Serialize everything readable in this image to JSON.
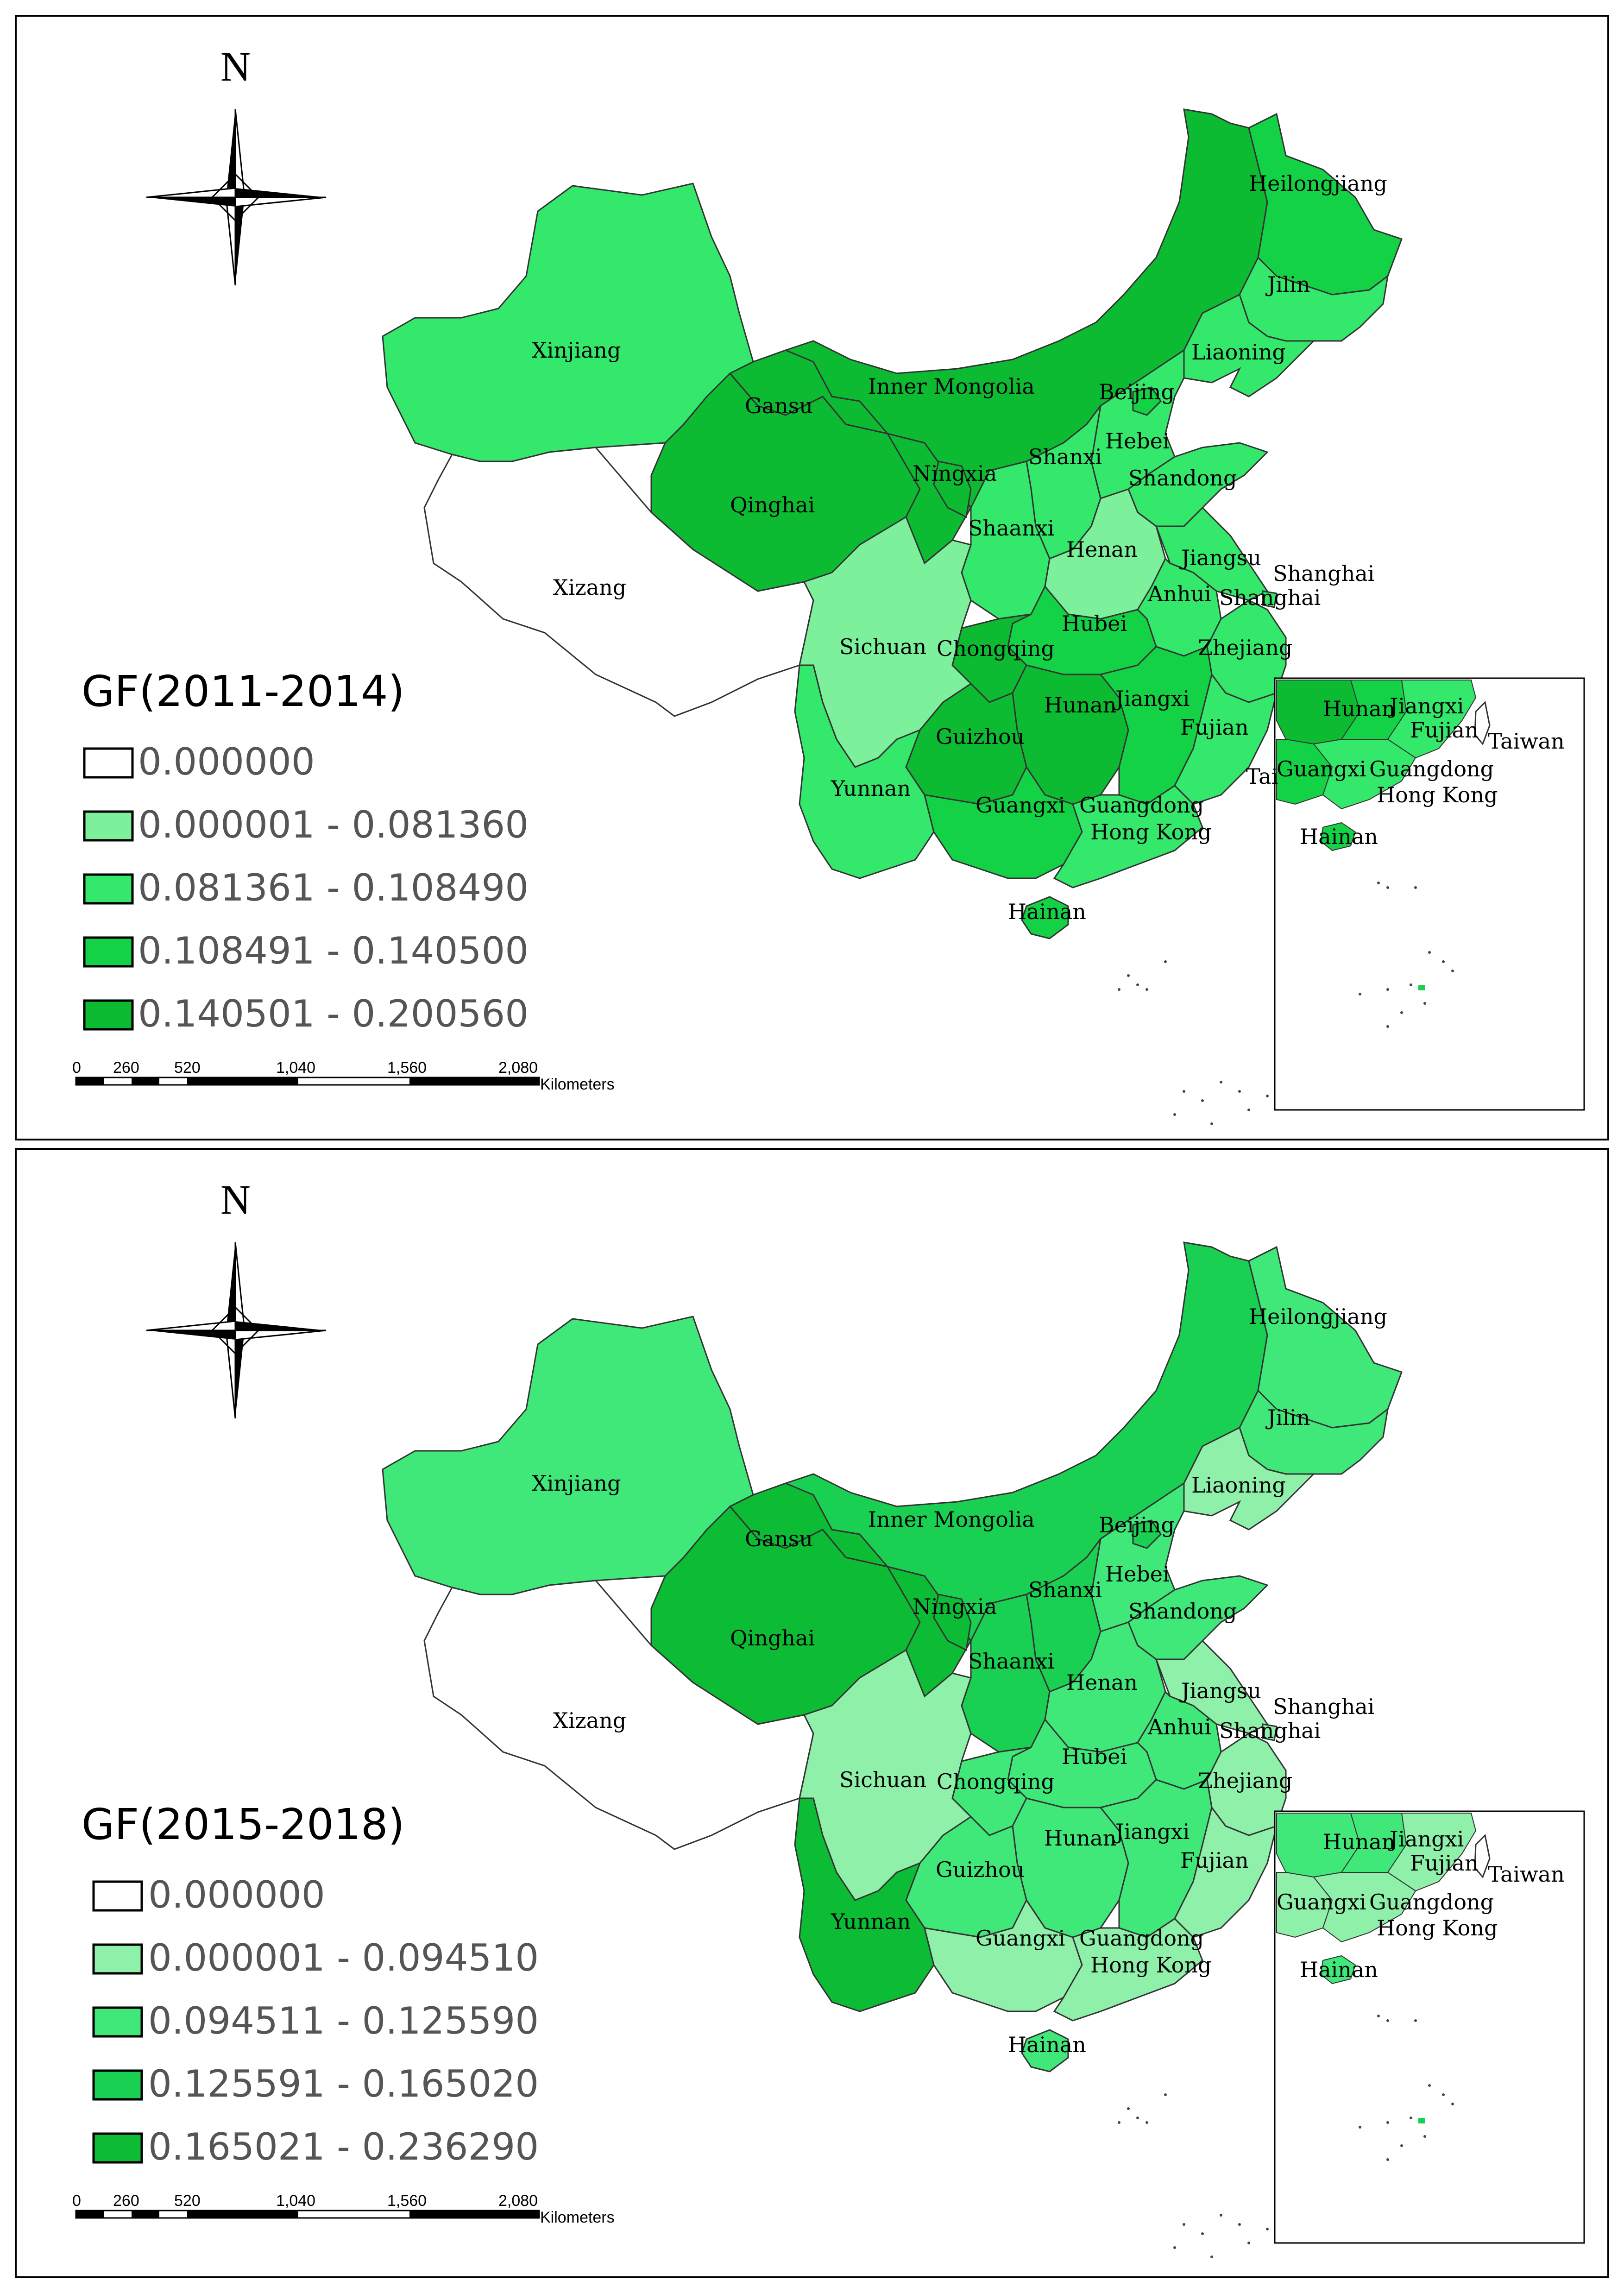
{
  "panels": [
    {
      "legend_title": "GF(2011-2014)",
      "classes": [
        {
          "label": "0.000000",
          "color": "#ffffff"
        },
        {
          "label": "0.000001 - 0.081360",
          "color": "#7cf09a"
        },
        {
          "label": "0.081361 - 0.108490",
          "color": "#33e86a"
        },
        {
          "label": "0.108491 - 0.140500",
          "color": "#14d246"
        },
        {
          "label": "0.140501 - 0.200560",
          "color": "#0dbb33"
        }
      ],
      "provinces": {
        "Xinjiang": 2,
        "Xizang": 0,
        "Qinghai": 4,
        "Gansu": 4,
        "Inner Mongolia": 4,
        "Heilongjiang": 3,
        "Jilin": 2,
        "Liaoning": 2,
        "Beijing": 3,
        "Hebei": 2,
        "Shanxi": 2,
        "Shandong": 2,
        "Ningxia": 4,
        "Shaanxi": 2,
        "Henan": 1,
        "Jiangsu": 2,
        "Anhui": 2,
        "Shanghai": 2,
        "Hubei": 3,
        "Chongqing": 4,
        "Sichuan": 1,
        "Zhejiang": 2,
        "Hunan": 4,
        "Jiangxi": 3,
        "Fujian": 2,
        "Guizhou": 4,
        "Yunnan": 2,
        "Guangxi": 3,
        "Guangdong": 2,
        "Hainan": 3
      }
    },
    {
      "legend_title": "GF(2015-2018)",
      "classes": [
        {
          "label": "0.000000",
          "color": "#ffffff"
        },
        {
          "label": "0.000001 - 0.094510",
          "color": "#8ff0aa"
        },
        {
          "label": "0.094511 - 0.125590",
          "color": "#40e87a"
        },
        {
          "label": "0.125591 - 0.165020",
          "color": "#1ad052"
        },
        {
          "label": "0.165021 - 0.236290",
          "color": "#0cbc34"
        }
      ],
      "provinces": {
        "Xinjiang": 2,
        "Xizang": 0,
        "Qinghai": 4,
        "Gansu": 4,
        "Inner Mongolia": 3,
        "Heilongjiang": 2,
        "Jilin": 2,
        "Liaoning": 1,
        "Beijing": 3,
        "Hebei": 2,
        "Shanxi": 3,
        "Shandong": 2,
        "Ningxia": 4,
        "Shaanxi": 3,
        "Henan": 2,
        "Jiangsu": 1,
        "Anhui": 2,
        "Shanghai": 1,
        "Hubei": 2,
        "Chongqing": 2,
        "Sichuan": 1,
        "Zhejiang": 1,
        "Hunan": 2,
        "Jiangxi": 2,
        "Fujian": 1,
        "Guizhou": 2,
        "Yunnan": 4,
        "Guangxi": 1,
        "Guangdong": 1,
        "Hainan": 2
      }
    }
  ],
  "labels": {
    "xinjiang": "Xinjiang",
    "xizang": "Xizang",
    "qinghai": "Qinghai",
    "gansu": "Gansu",
    "inner_mongolia": "Inner Mongolia",
    "heilongjiang": "Heilongjiang",
    "jilin": "Jilin",
    "liaoning": "Liaoning",
    "beijing": "Beijing",
    "hebei": "Hebei",
    "shanxi": "Shanxi",
    "shandong": "Shandong",
    "ningxia": "Ningxia",
    "shaanxi": "Shaanxi",
    "henan": "Henan",
    "jiangsu": "Jiangsu",
    "anhui": "Anhui",
    "shanghai": "Shanghai",
    "hubei": "Hubei",
    "chongqing": "Chongqing",
    "sichuan": "Sichuan",
    "zhejiang": "Zhejiang",
    "hunan": "Hunan",
    "jiangxi": "Jiangxi",
    "fujian": "Fujian",
    "guizhou": "Guizhou",
    "yunnan": "Yunnan",
    "guangxi": "Guangxi",
    "guangdong": "Guangdong",
    "hong_kong": "Hong Kong",
    "hainan": "Hainan",
    "taiwan": "Taiwan",
    "tai": "Tai"
  },
  "north": "N",
  "scale": {
    "ticks": [
      "0",
      "260",
      "520",
      "1,040",
      "1,560",
      "2,080"
    ],
    "unit": "Kilometers"
  }
}
